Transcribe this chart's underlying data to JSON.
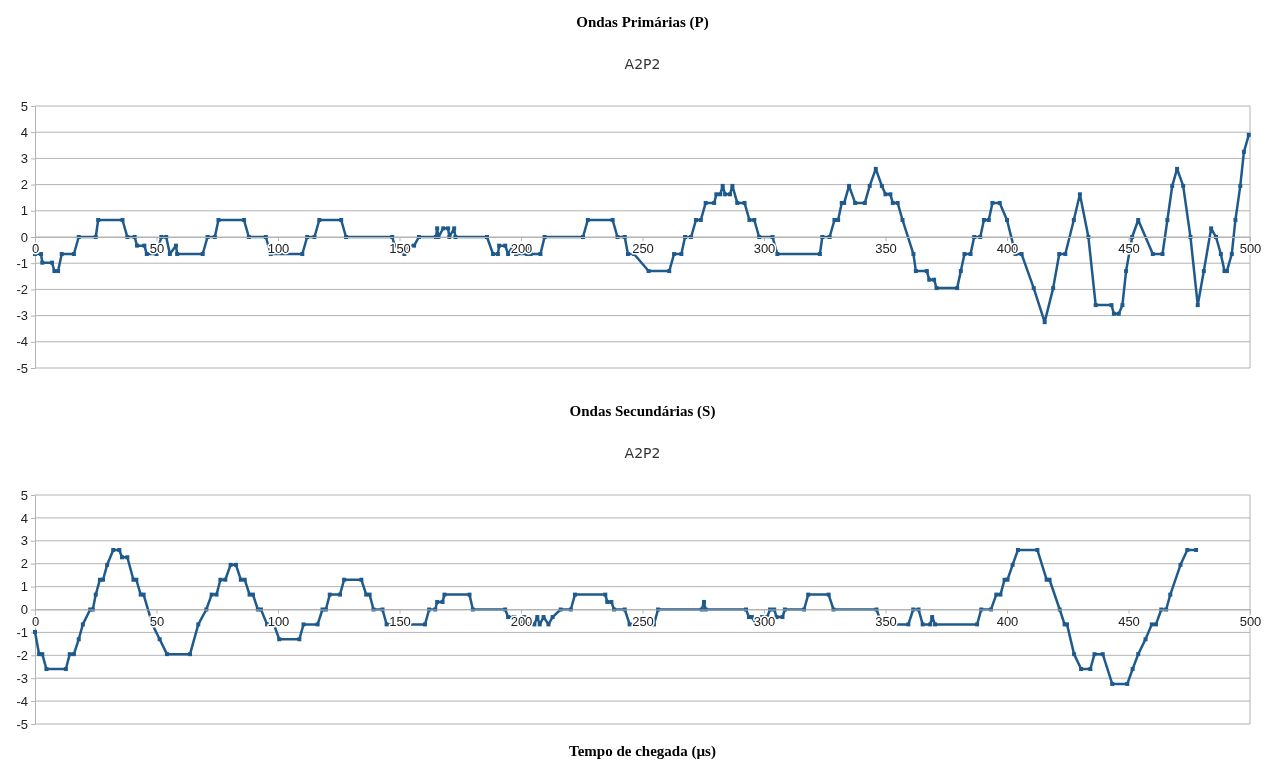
{
  "chart_data": [
    {
      "type": "line",
      "title": "Ondas Primárias (P)",
      "subtitle": "A2P2",
      "marker": "square",
      "grid": "y",
      "line_style": "solid",
      "xlim": [
        0,
        500
      ],
      "xticks": [
        0,
        50,
        100,
        150,
        200,
        250,
        300,
        350,
        400,
        450,
        500
      ],
      "ylim": [
        -5,
        5
      ],
      "yticks": [
        -5,
        -4,
        -3,
        -2,
        -1,
        0,
        1,
        2,
        3,
        4,
        5
      ],
      "series": [
        {
          "color": "#1f5a8c",
          "x": [
            0,
            2.5,
            3,
            7,
            8,
            9.5,
            11,
            16,
            18,
            25,
            26,
            36,
            38,
            41,
            42,
            45,
            46,
            50,
            52,
            54,
            55.5,
            58,
            58.5,
            69,
            71,
            74,
            75.5,
            86,
            88,
            95,
            97,
            110,
            112,
            115,
            117,
            126,
            128,
            147,
            148,
            150,
            152,
            153.5,
            156,
            158,
            165,
            165.5,
            166,
            168,
            170,
            170.5,
            172.5,
            173,
            186,
            188.5,
            190.5,
            191,
            193.5,
            194.7,
            196.7,
            198,
            202.5,
            203.3,
            204,
            208,
            209.7,
            225.5,
            227.5,
            237.7,
            239.7,
            242.7,
            244,
            246.5,
            252.5,
            261,
            263,
            266,
            267.5,
            270,
            272,
            274,
            276,
            279.5,
            280.4,
            282,
            283,
            284,
            286,
            287,
            289,
            292,
            294,
            296,
            298,
            303.5,
            305.5,
            323,
            324,
            327,
            329,
            330.5,
            332,
            333,
            335,
            337.5,
            341.5,
            343.5,
            346,
            348.5,
            350,
            352,
            353,
            355,
            357,
            361.5,
            362.5,
            367,
            368,
            370,
            371,
            379.5,
            381,
            382.5,
            385,
            386.5,
            389,
            390.5,
            392.5,
            394,
            397,
            400,
            403.5,
            406,
            411,
            415.5,
            419,
            421.5,
            424,
            427.5,
            430,
            433.5,
            436.5,
            443,
            444,
            446,
            447.5,
            449,
            451.5,
            454,
            460,
            464,
            466,
            468,
            470,
            472.5,
            475.5,
            478.5,
            481,
            484,
            486,
            488,
            489.5,
            490.5,
            492.5,
            494,
            496,
            497.5,
            499.5
          ],
          "values": [
            -0.65,
            -0.65,
            -0.98,
            -0.98,
            -1.3,
            -1.3,
            -0.65,
            -0.65,
            0,
            0,
            0.65,
            0.65,
            0,
            0,
            -0.33,
            -0.33,
            -0.65,
            -0.65,
            0,
            0,
            -0.65,
            -0.33,
            -0.65,
            -0.65,
            0,
            0,
            0.65,
            0.65,
            0,
            0,
            -0.65,
            -0.65,
            0,
            0,
            0.65,
            0.65,
            0,
            0,
            -0.33,
            -0.33,
            -0.65,
            -0.33,
            -0.33,
            0,
            0,
            0.33,
            0,
            0.33,
            0.33,
            0,
            0.33,
            0,
            0,
            -0.65,
            -0.65,
            -0.33,
            -0.33,
            -0.65,
            -0.33,
            -0.65,
            -0.65,
            -0.33,
            -0.65,
            -0.65,
            0,
            0,
            0.65,
            0.65,
            0,
            0,
            -0.65,
            -0.65,
            -1.3,
            -1.3,
            -0.65,
            -0.65,
            0,
            0,
            0.65,
            0.65,
            1.3,
            1.3,
            1.63,
            1.63,
            1.95,
            1.63,
            1.63,
            1.95,
            1.3,
            1.3,
            0.65,
            0.65,
            0,
            0,
            -0.65,
            -0.65,
            0,
            0,
            0.65,
            0.65,
            1.3,
            1.3,
            1.95,
            1.3,
            1.3,
            1.95,
            2.6,
            1.95,
            1.63,
            1.63,
            1.3,
            1.3,
            0.65,
            -0.65,
            -1.3,
            -1.3,
            -1.63,
            -1.63,
            -1.95,
            -1.95,
            -1.3,
            -0.65,
            -0.65,
            0,
            0,
            0.65,
            0.65,
            1.3,
            1.3,
            0.65,
            -0.65,
            -0.65,
            -1.95,
            -3.25,
            -1.95,
            -0.65,
            -0.65,
            0.65,
            1.63,
            0,
            -2.6,
            -2.6,
            -2.93,
            -2.93,
            -2.6,
            -1.3,
            0,
            0.65,
            -0.65,
            -0.65,
            0.65,
            1.95,
            2.6,
            1.95,
            0,
            -2.6,
            -1.3,
            0.33,
            0,
            -0.65,
            -1.3,
            -1.3,
            -0.65,
            0.65,
            1.95,
            3.25,
            3.9
          ]
        }
      ]
    },
    {
      "type": "line",
      "title": "Ondas Secundárias (S)",
      "subtitle": "A2P2",
      "xlabel": "Tempo de chegada (µs)",
      "marker": "square",
      "grid": "y",
      "line_style": "solid",
      "xlim": [
        0,
        500
      ],
      "xticks": [
        0,
        50,
        100,
        150,
        200,
        250,
        300,
        350,
        400,
        450,
        500
      ],
      "ylim": [
        -5,
        5
      ],
      "yticks": [
        -5,
        -4,
        -3,
        -2,
        -1,
        0,
        1,
        2,
        3,
        4,
        5
      ],
      "series": [
        {
          "color": "#1f5a8c",
          "x": [
            0,
            1.7,
            3,
            4.7,
            12.7,
            14.3,
            16,
            18,
            19.7,
            22.7,
            23.8,
            25,
            26.7,
            28,
            29.7,
            32.2,
            34.7,
            35.8,
            38,
            40.5,
            41.7,
            43.5,
            44.7,
            48.3,
            51.3,
            54.3,
            63.8,
            67.2,
            70.5,
            72.7,
            74.7,
            76.3,
            78.3,
            80.5,
            82.7,
            84.7,
            86.3,
            88.3,
            89.7,
            91.7,
            93,
            95.5,
            98.3,
            100.5,
            108.8,
            110.5,
            116.3,
            118.3,
            119.7,
            121.3,
            125.5,
            127.2,
            134.3,
            136.3,
            137.7,
            139.3,
            143,
            144.7,
            160.5,
            162.2,
            164.7,
            165.5,
            167.7,
            168.5,
            178.8,
            180.2,
            193.5,
            194.7,
            197.2,
            198.3,
            200,
            201.3,
            203,
            205.5,
            206.7,
            207.7,
            209.3,
            211.3,
            213,
            216.3,
            220.5,
            222.2,
            234.7,
            235.5,
            237.2,
            238.3,
            242.7,
            244.7,
            254.7,
            256.4,
            274.4,
            275.3,
            276,
            292.6,
            293.8,
            295,
            296.8,
            298,
            299.2,
            301.3,
            302.5,
            304.2,
            305.2,
            307.6,
            308.6,
            316.5,
            318.2,
            326.6,
            328.6,
            346.3,
            348.5,
            359.4,
            361.4,
            363.6,
            365.3,
            368.4,
            369.2,
            370.4,
            387.7,
            389.4,
            393.4,
            395.6,
            397.3,
            399,
            400.2,
            402.3,
            404.5,
            412.5,
            416.3,
            417.5,
            421.7,
            423.7,
            424.7,
            427.6,
            430.5,
            434.3,
            436,
            439.4,
            443.3,
            449.5,
            451.7,
            454,
            457,
            459.6,
            461.3,
            463.5,
            465.5,
            467.2,
            471.4,
            474.2,
            477.8
          ],
          "values": [
            -0.98,
            -1.95,
            -1.95,
            -2.6,
            -2.6,
            -1.95,
            -1.95,
            -1.3,
            -0.65,
            0,
            0,
            0.65,
            1.3,
            1.3,
            1.95,
            2.6,
            2.6,
            2.28,
            2.28,
            1.3,
            1.3,
            0.65,
            0.65,
            -0.65,
            -1.3,
            -1.95,
            -1.95,
            -0.65,
            0,
            0.65,
            0.65,
            1.3,
            1.3,
            1.95,
            1.95,
            1.3,
            1.3,
            0.65,
            0.65,
            0,
            0,
            -0.65,
            -0.65,
            -1.3,
            -1.3,
            -0.65,
            -0.65,
            0,
            0,
            0.65,
            0.65,
            1.3,
            1.3,
            0.65,
            0.65,
            0,
            0,
            -0.65,
            -0.65,
            0,
            0,
            0.33,
            0.33,
            0.65,
            0.65,
            0,
            0,
            -0.33,
            -0.33,
            -0.65,
            -0.65,
            -0.33,
            -0.65,
            -0.65,
            -0.33,
            -0.65,
            -0.33,
            -0.65,
            -0.33,
            0,
            0,
            0.65,
            0.65,
            0.33,
            0.33,
            0,
            0,
            -0.65,
            -0.65,
            0,
            0,
            0.33,
            0,
            0,
            -0.33,
            -0.33,
            -0.65,
            -0.65,
            -0.33,
            -0.33,
            0,
            0,
            -0.33,
            -0.33,
            0,
            0,
            0.65,
            0.65,
            0,
            0,
            -0.65,
            -0.65,
            0,
            0,
            -0.65,
            -0.65,
            -0.33,
            -0.65,
            -0.65,
            0,
            0,
            0.65,
            0.65,
            1.3,
            1.3,
            1.95,
            2.6,
            2.6,
            1.3,
            1.3,
            0,
            -0.65,
            -0.65,
            -1.95,
            -2.6,
            -2.6,
            -1.95,
            -1.95,
            -3.25,
            -3.25,
            -2.6,
            -1.95,
            -1.3,
            -0.65,
            -0.65,
            0,
            0,
            0.65,
            1.95,
            2.6,
            2.6
          ]
        }
      ]
    }
  ]
}
